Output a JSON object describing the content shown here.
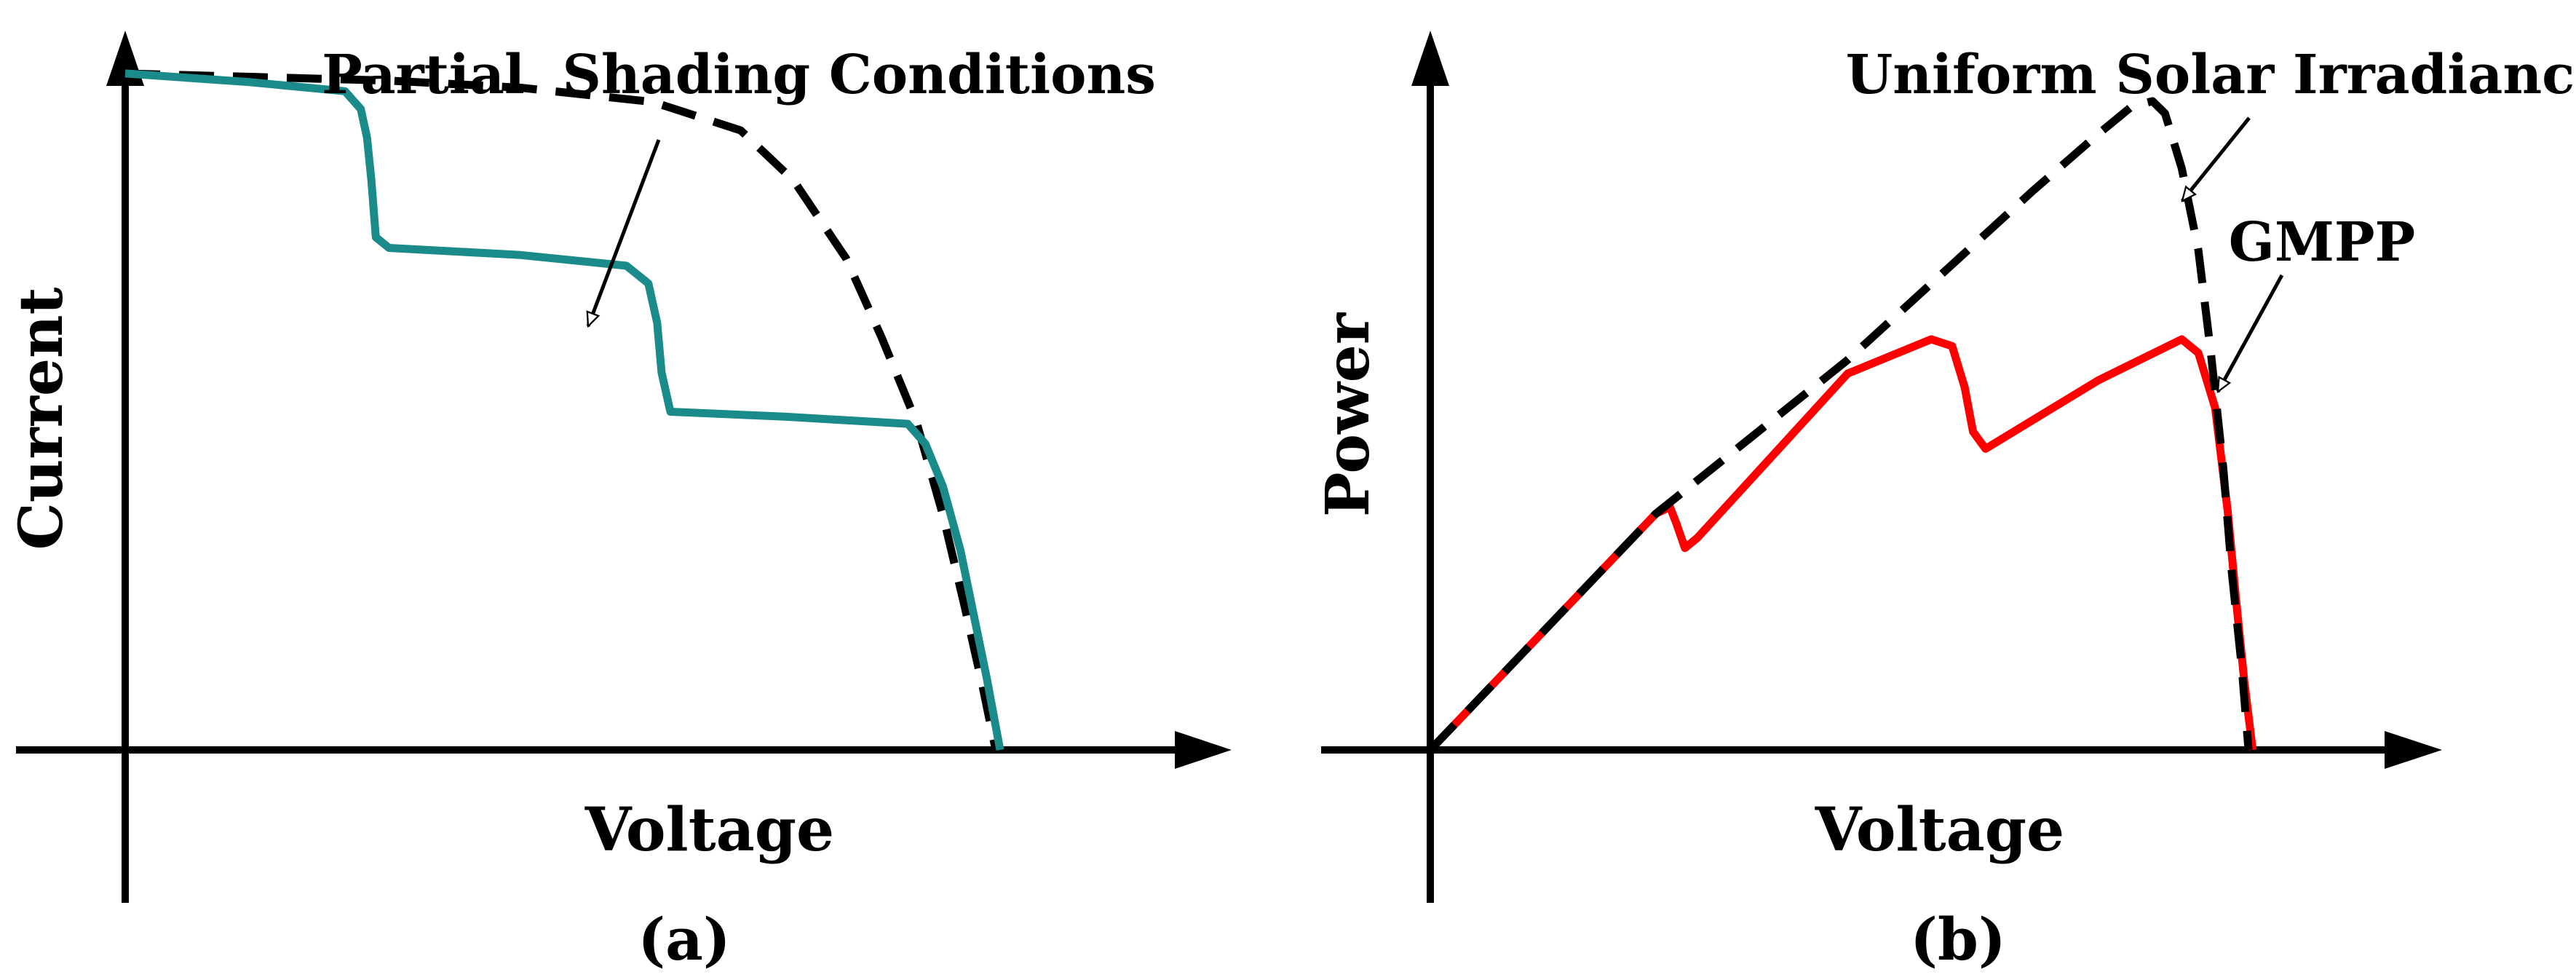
{
  "chart_data": [
    {
      "type": "line",
      "panel_label": "(a)",
      "xlabel": "Voltage",
      "ylabel": "Current",
      "annotations": [
        {
          "text": "Partial  Shading Conditions",
          "target_series": "partial-shading"
        }
      ],
      "series": [
        {
          "id": "uniform",
          "style": "dashed",
          "color": "#000000",
          "points": [
            [
              0,
              0.95
            ],
            [
              0.15,
              0.945
            ],
            [
              0.3,
              0.94
            ],
            [
              0.45,
              0.93
            ],
            [
              0.6,
              0.91
            ],
            [
              0.7,
              0.87
            ],
            [
              0.76,
              0.8
            ],
            [
              0.82,
              0.69
            ],
            [
              0.86,
              0.58
            ],
            [
              0.9,
              0.46
            ],
            [
              0.93,
              0.33
            ],
            [
              0.955,
              0.2
            ],
            [
              0.975,
              0.09
            ],
            [
              0.99,
              0
            ]
          ]
        },
        {
          "id": "partial-shading",
          "style": "solid",
          "color": "#1a8a8a",
          "points": [
            [
              0,
              0.95
            ],
            [
              0.14,
              0.938
            ],
            [
              0.25,
              0.925
            ],
            [
              0.268,
              0.9
            ],
            [
              0.275,
              0.86
            ],
            [
              0.28,
              0.8
            ],
            [
              0.285,
              0.72
            ],
            [
              0.3,
              0.705
            ],
            [
              0.45,
              0.695
            ],
            [
              0.57,
              0.68
            ],
            [
              0.595,
              0.655
            ],
            [
              0.605,
              0.6
            ],
            [
              0.61,
              0.53
            ],
            [
              0.62,
              0.475
            ],
            [
              0.75,
              0.468
            ],
            [
              0.89,
              0.458
            ],
            [
              0.91,
              0.43
            ],
            [
              0.93,
              0.37
            ],
            [
              0.95,
              0.28
            ],
            [
              0.965,
              0.19
            ],
            [
              0.98,
              0.1
            ],
            [
              0.995,
              0
            ]
          ]
        }
      ]
    },
    {
      "type": "line",
      "panel_label": "(b)",
      "xlabel": "Voltage",
      "ylabel": "Power",
      "annotations": [
        {
          "text": "Uniform Solar Irradiance",
          "target_series": "uniform"
        },
        {
          "text": "GMPP",
          "target_series": "partial-shading"
        }
      ],
      "series": [
        {
          "id": "uniform",
          "style": "dashed",
          "color": "#000000",
          "points": [
            [
              0,
              0
            ],
            [
              0.27,
              0.345
            ],
            [
              0.5,
              0.57
            ],
            [
              0.72,
              0.815
            ],
            [
              0.8,
              0.9
            ],
            [
              0.84,
              0.94
            ],
            [
              0.865,
              0.948
            ],
            [
              0.88,
              0.93
            ],
            [
              0.9,
              0.85
            ],
            [
              0.92,
              0.73
            ],
            [
              0.935,
              0.58
            ],
            [
              0.95,
              0.41
            ],
            [
              0.96,
              0.26
            ],
            [
              0.972,
              0.12
            ],
            [
              0.98,
              0
            ]
          ]
        },
        {
          "id": "partial-shading",
          "style": "solid",
          "color": "#ff0000",
          "points": [
            [
              0,
              0
            ],
            [
              0.27,
              0.345
            ],
            [
              0.287,
              0.355
            ],
            [
              0.295,
              0.33
            ],
            [
              0.305,
              0.295
            ],
            [
              0.32,
              0.31
            ],
            [
              0.5,
              0.55
            ],
            [
              0.6,
              0.6
            ],
            [
              0.625,
              0.59
            ],
            [
              0.64,
              0.53
            ],
            [
              0.65,
              0.465
            ],
            [
              0.665,
              0.44
            ],
            [
              0.8,
              0.54
            ],
            [
              0.9,
              0.6
            ],
            [
              0.92,
              0.58
            ],
            [
              0.94,
              0.5
            ],
            [
              0.955,
              0.35
            ],
            [
              0.965,
              0.22
            ],
            [
              0.975,
              0.1
            ],
            [
              0.985,
              0
            ]
          ]
        }
      ]
    }
  ]
}
